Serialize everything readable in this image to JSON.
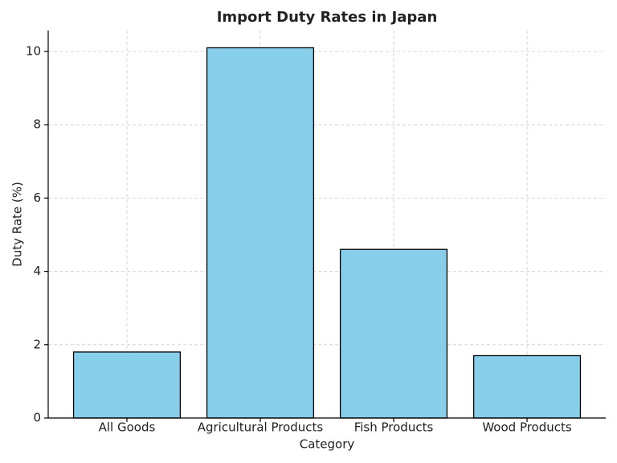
{
  "chart_data": {
    "type": "bar",
    "title": "Import Duty Rates in Japan",
    "x_label": "Category",
    "y_label": "Duty Rate (%)",
    "categories": [
      "All Goods",
      "Agricultural Products",
      "Fish Products",
      "Wood Products"
    ],
    "values": [
      1.8,
      10.1,
      4.6,
      1.7
    ],
    "color": "#87ceeb",
    "edgecolor": "#000000",
    "ylim": [
      0,
      10.57
    ],
    "yticks": [
      0,
      2,
      4,
      6,
      8,
      10
    ],
    "grid": true
  }
}
